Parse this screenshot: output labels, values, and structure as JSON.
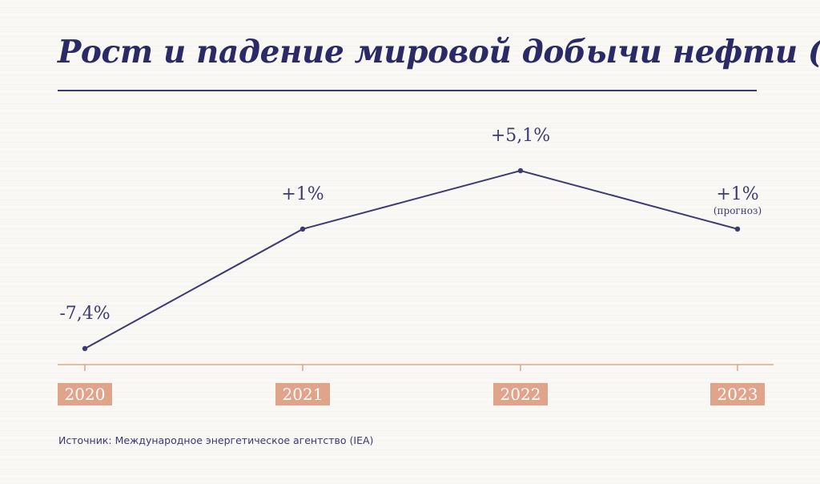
{
  "title": "Рост и падение мировой добычи нефти (%)",
  "source": "Источник: Международное энергетическое агентство (IEA)",
  "colors": {
    "line": "#3b3a73",
    "axis": "#d9a98a",
    "year_box": "#dfa48a",
    "year_text": "#ffffff",
    "title": "#2a2a66",
    "background": "#faf8f5"
  },
  "chart_data": {
    "type": "line",
    "title": "Рост и падение мировой добычи нефти (%)",
    "xlabel": "",
    "ylabel": "",
    "categories": [
      "2020",
      "2021",
      "2022",
      "2023"
    ],
    "values": [
      -7.4,
      1,
      5.1,
      1
    ],
    "labels": [
      "-7,4%",
      "+1%",
      "+5,1%",
      "+1%"
    ],
    "annotations": [
      "",
      "",
      "",
      "(прогноз)"
    ],
    "ylim": [
      -7.4,
      5.1
    ],
    "grid": false,
    "legend": "none"
  }
}
